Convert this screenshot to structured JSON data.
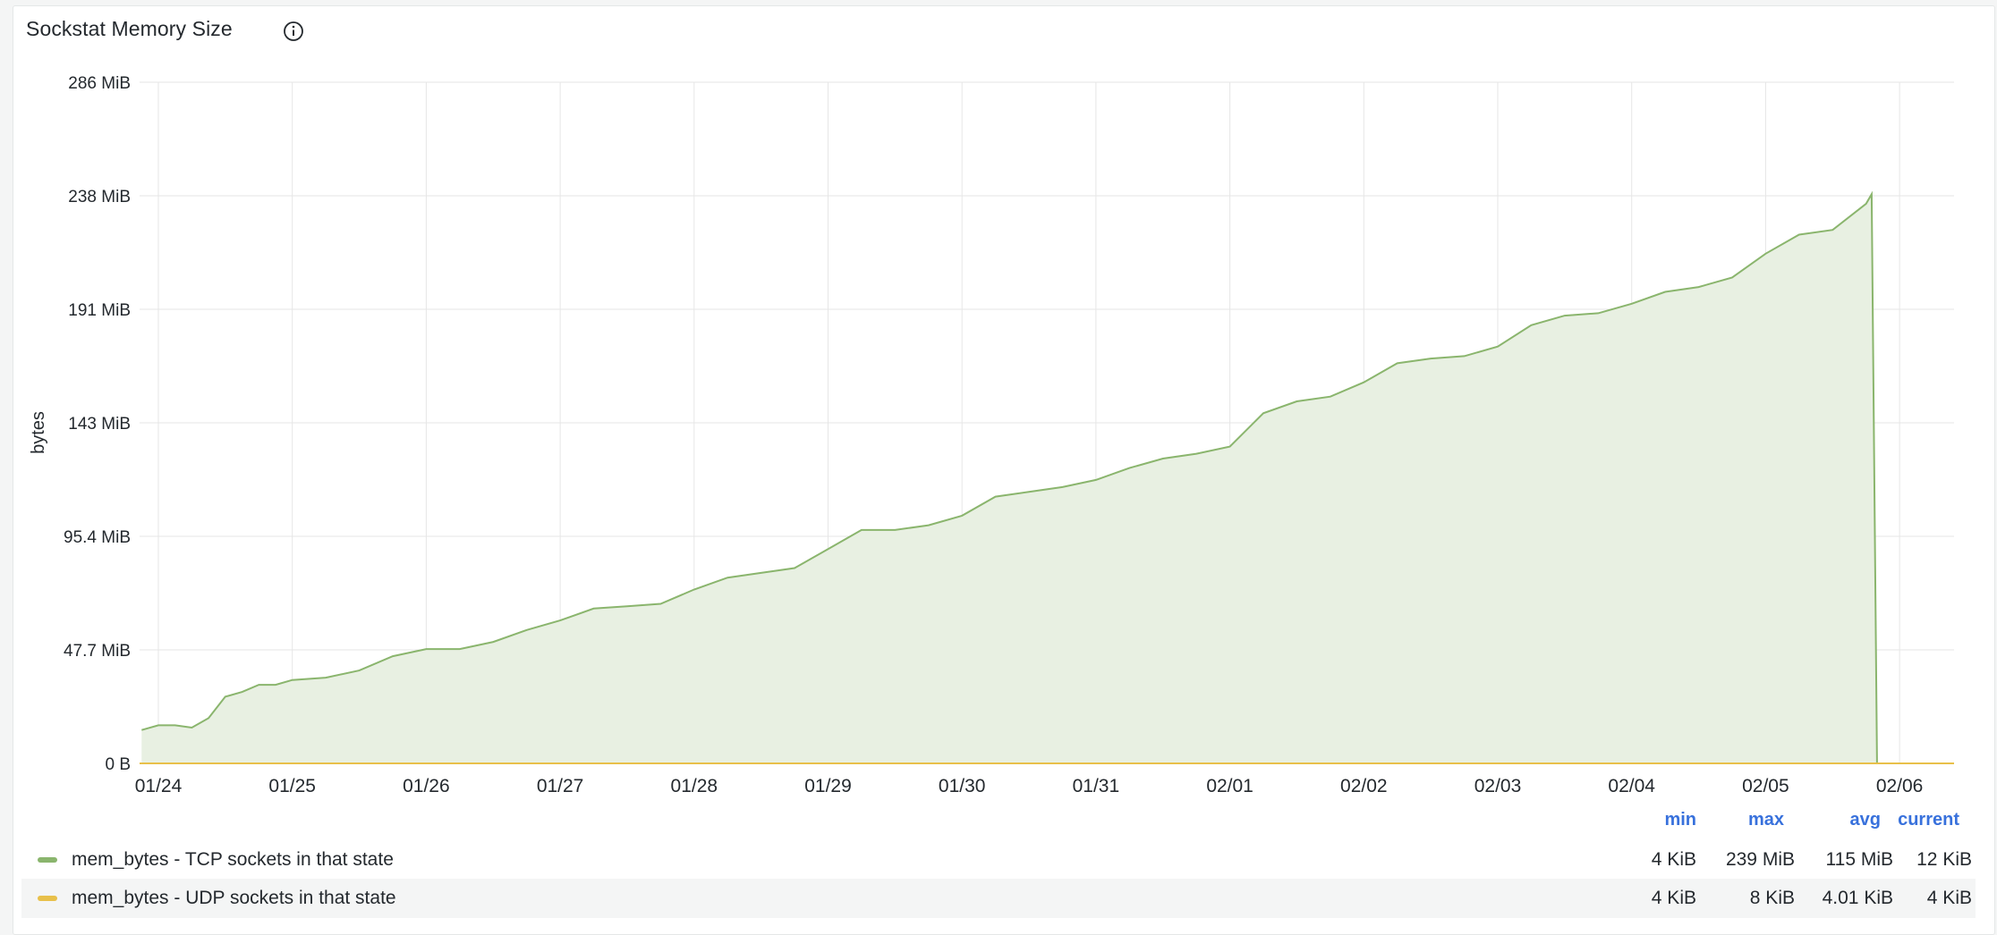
{
  "panel": {
    "title": "Sockstat Memory Size",
    "info_icon": "info-circle-icon"
  },
  "colors": {
    "tcp": "#8ab56d",
    "tcp_fill": "#e8f0e2",
    "udp": "#e8c04a",
    "grid": "#e6e6e6",
    "legend_header": "#3871dc"
  },
  "chart_data": {
    "type": "area",
    "title": "Sockstat Memory Size",
    "ylabel": "bytes",
    "y_unit": "MiB",
    "ylim": [
      0,
      286
    ],
    "y_ticks": [
      "0 B",
      "47.7 MiB",
      "95.4 MiB",
      "143 MiB",
      "191 MiB",
      "238 MiB",
      "286 MiB"
    ],
    "x_ticks": [
      "01/24",
      "01/25",
      "01/26",
      "01/27",
      "01/28",
      "01/29",
      "01/30",
      "01/31",
      "02/01",
      "02/02",
      "02/03",
      "02/04",
      "02/05",
      "02/06"
    ],
    "grid": true,
    "legend_placement": "bottom",
    "series": [
      {
        "name": "mem_bytes - TCP sockets in that state",
        "x": [
          "01/23 21:00",
          "01/24 00:00",
          "01/24 03:00",
          "01/24 06:00",
          "01/24 09:00",
          "01/24 12:00",
          "01/24 15:00",
          "01/24 18:00",
          "01/24 21:00",
          "01/25 00:00",
          "01/25 06:00",
          "01/25 12:00",
          "01/25 18:00",
          "01/26 00:00",
          "01/26 06:00",
          "01/26 12:00",
          "01/26 18:00",
          "01/27 00:00",
          "01/27 06:00",
          "01/27 12:00",
          "01/27 18:00",
          "01/28 00:00",
          "01/28 06:00",
          "01/28 12:00",
          "01/28 18:00",
          "01/29 00:00",
          "01/29 06:00",
          "01/29 12:00",
          "01/29 18:00",
          "01/30 00:00",
          "01/30 06:00",
          "01/30 12:00",
          "01/30 18:00",
          "01/31 00:00",
          "01/31 06:00",
          "01/31 12:00",
          "01/31 18:00",
          "02/01 00:00",
          "02/01 06:00",
          "02/01 12:00",
          "02/01 18:00",
          "02/02 00:00",
          "02/02 06:00",
          "02/02 12:00",
          "02/02 18:00",
          "02/03 00:00",
          "02/03 06:00",
          "02/03 12:00",
          "02/03 18:00",
          "02/04 00:00",
          "02/04 06:00",
          "02/04 12:00",
          "02/04 18:00",
          "02/05 00:00",
          "02/05 06:00",
          "02/05 12:00",
          "02/05 18:00",
          "02/05 19:00"
        ],
        "values": [
          14,
          16,
          16,
          15,
          19,
          28,
          30,
          33,
          33,
          35,
          36,
          39,
          45,
          48,
          48,
          51,
          56,
          60,
          65,
          66,
          67,
          73,
          78,
          80,
          82,
          90,
          98,
          98,
          100,
          104,
          112,
          114,
          116,
          119,
          124,
          128,
          130,
          133,
          147,
          152,
          154,
          160,
          168,
          170,
          171,
          175,
          184,
          188,
          189,
          193,
          198,
          200,
          204,
          214,
          222,
          224,
          235,
          239
        ]
      },
      {
        "name": "mem_bytes - UDP sockets in that state",
        "x": [
          "01/23 21:00",
          "02/06 11:00"
        ],
        "values": [
          0.004,
          0.004
        ]
      }
    ]
  },
  "legend": {
    "headers": {
      "min": "min",
      "max": "max",
      "avg": "avg",
      "current": "current"
    },
    "rows": [
      {
        "name": "mem_bytes - TCP sockets in that state",
        "min": "4 KiB",
        "max": "239 MiB",
        "avg": "115 MiB",
        "current": "12 KiB"
      },
      {
        "name": "mem_bytes - UDP sockets in that state",
        "min": "4 KiB",
        "max": "8 KiB",
        "avg": "4.01 KiB",
        "current": "4 KiB"
      }
    ]
  }
}
